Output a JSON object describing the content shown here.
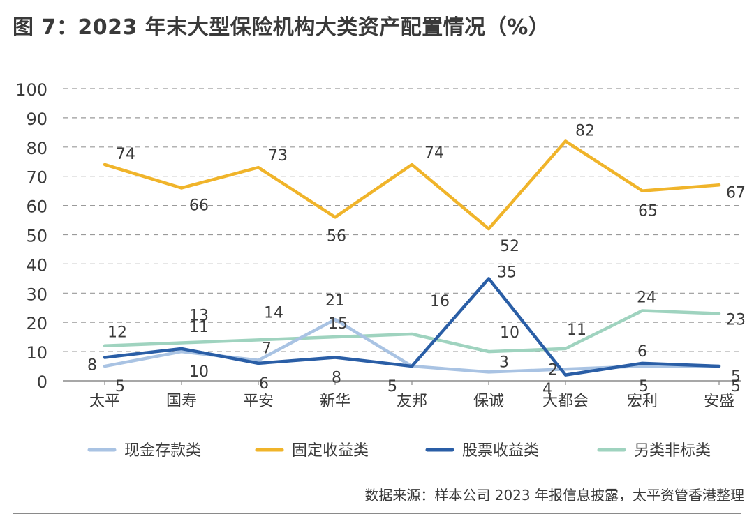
{
  "header": {
    "title": "图 7：2023 年末大型保险机构大类资产配置情况（%）"
  },
  "footer": {
    "source": "数据来源：样本公司 2023 年报信息披露，太平资管香港整理"
  },
  "colors": {
    "现金存款类": "#a9c3e3",
    "固定收益类": "#f0b42a",
    "股票收益类": "#2a5ea6",
    "另类非标类": "#9fd3bf"
  },
  "chart_data": {
    "type": "line",
    "categories": [
      "太平",
      "国寿",
      "平安",
      "新华",
      "友邦",
      "保诚",
      "大都会",
      "宏利",
      "安盛"
    ],
    "ylim": [
      0,
      100
    ],
    "yticks": [
      0,
      10,
      20,
      30,
      40,
      50,
      60,
      70,
      80,
      90,
      100
    ],
    "grid": true,
    "legend_position": "bottom",
    "series": [
      {
        "name": "现金存款类",
        "values": [
          5,
          10,
          7,
          21,
          5,
          3,
          4,
          5,
          5
        ],
        "labels": [
          "5",
          "10",
          "7",
          "21",
          "5",
          "3",
          "4",
          "5",
          "5"
        ]
      },
      {
        "name": "固定收益类",
        "values": [
          74,
          66,
          73,
          56,
          74,
          52,
          82,
          65,
          67
        ],
        "labels": [
          "74",
          "66",
          "73",
          "56",
          "74",
          "52",
          "82",
          "65",
          "67"
        ]
      },
      {
        "name": "股票收益类",
        "values": [
          8,
          11,
          6,
          8,
          5,
          35,
          2,
          6,
          5
        ],
        "labels": [
          "8",
          "11",
          "6",
          "8",
          "5",
          "35",
          "2",
          "6",
          "5"
        ]
      },
      {
        "name": "另类非标类",
        "values": [
          12,
          13,
          14,
          15,
          16,
          10,
          11,
          24,
          23
        ],
        "labels": [
          "12",
          "13",
          "14",
          "15",
          "16",
          "10",
          "11",
          "24",
          "23"
        ]
      }
    ]
  }
}
